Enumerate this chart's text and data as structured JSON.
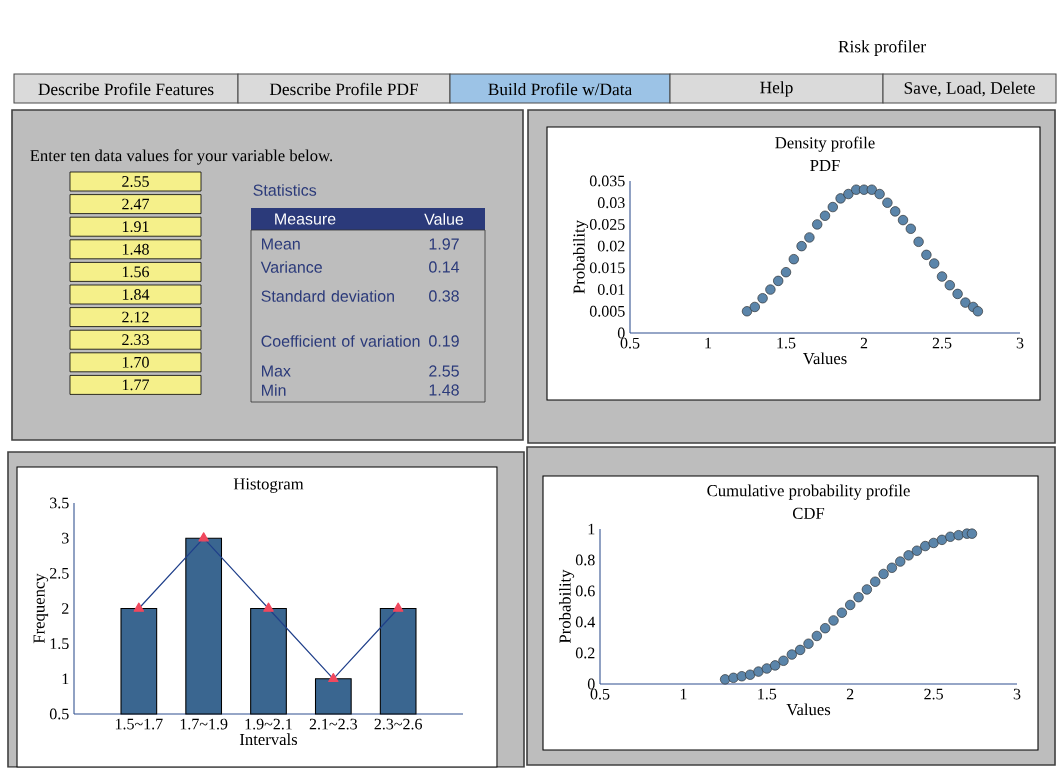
{
  "chart_data": [
    {
      "type": "other",
      "title": "Risk profiler",
      "annotations": [
        "Describe Profile Features",
        "Describe Profile PDF",
        "Build Profile w/Data",
        "Help",
        "Save, Load, Delete"
      ]
    },
    {
      "type": "other",
      "title": "Enter ten data values for your variable below.",
      "annotations": [
        "2.55",
        "2.47",
        "1.91",
        "1.48",
        "1.56",
        "1.84",
        "2.12",
        "2.33",
        "1.70",
        "1.77"
      ]
    },
    {
      "type": "other",
      "title": "Statistics",
      "xlabel": "Measure",
      "ylabel": "Value",
      "categories": [
        "Mean",
        "Variance",
        "Standard deviation",
        "Coefficient of variation",
        "Max",
        "Min"
      ],
      "values": [
        1.97,
        0.14,
        0.38,
        0.19,
        2.55,
        1.48
      ],
      "data_labels": true
    },
    {
      "type": "scatter",
      "title": "Density profile",
      "subtitle": "PDF",
      "xlabel": "Values",
      "ylabel": "Probability",
      "marker": "circle",
      "xlim": [
        0.5,
        3
      ],
      "xticks": [
        0.5,
        1,
        1.5,
        2,
        2.5,
        3
      ],
      "ylim": [
        0,
        0.035
      ],
      "yticks": [
        0,
        0.005,
        0.01,
        0.015,
        0.02,
        0.025,
        0.03,
        0.035
      ],
      "series": [
        {
          "color": "#5b85aa",
          "x": [
            1.25,
            1.3,
            1.35,
            1.4,
            1.45,
            1.5,
            1.55,
            1.6,
            1.65,
            1.7,
            1.75,
            1.8,
            1.85,
            1.9,
            1.95,
            2.0,
            2.05,
            2.1,
            2.15,
            2.2,
            2.25,
            2.3,
            2.35,
            2.4,
            2.45,
            2.5,
            2.55,
            2.6,
            2.65,
            2.7,
            2.73
          ],
          "values": [
            0.005,
            0.006,
            0.008,
            0.01,
            0.012,
            0.014,
            0.017,
            0.02,
            0.022,
            0.025,
            0.027,
            0.029,
            0.031,
            0.032,
            0.033,
            0.033,
            0.033,
            0.032,
            0.03,
            0.028,
            0.026,
            0.024,
            0.021,
            0.018,
            0.016,
            0.013,
            0.011,
            0.009,
            0.007,
            0.006,
            0.005
          ]
        }
      ]
    },
    {
      "type": "bar",
      "title": "Histogram",
      "xlabel": "Intervals",
      "ylabel": "Frequency",
      "categories": [
        "1.5~1.7",
        "1.7~1.9",
        "1.9~2.1",
        "2.1~2.3",
        "2.3~2.6"
      ],
      "ylim": [
        0.5,
        3.5
      ],
      "yticks": [
        0.5,
        1,
        1.5,
        2,
        2.5,
        3,
        3.5
      ],
      "series": [
        {
          "color": "#3a6690",
          "values": [
            2,
            3,
            2,
            1,
            2
          ]
        },
        {
          "type": "line",
          "color": "#1f3f8a",
          "marker": "triangle",
          "values": [
            2,
            3,
            2,
            1,
            2
          ]
        }
      ]
    },
    {
      "type": "scatter",
      "title": "Cumulative probability profile",
      "subtitle": "CDF",
      "xlabel": "Values",
      "ylabel": "Probability",
      "marker": "circle",
      "xlim": [
        0.5,
        3
      ],
      "xticks": [
        0.5,
        1,
        1.5,
        2,
        2.5,
        3
      ],
      "ylim": [
        0,
        1
      ],
      "yticks": [
        0,
        0.2,
        0.4,
        0.6,
        0.8,
        1
      ],
      "series": [
        {
          "color": "#5b85aa",
          "x": [
            1.25,
            1.3,
            1.35,
            1.4,
            1.45,
            1.5,
            1.55,
            1.6,
            1.65,
            1.7,
            1.75,
            1.8,
            1.85,
            1.9,
            1.95,
            2.0,
            2.05,
            2.1,
            2.15,
            2.2,
            2.25,
            2.3,
            2.35,
            2.4,
            2.45,
            2.5,
            2.55,
            2.6,
            2.65,
            2.7,
            2.73
          ],
          "values": [
            0.03,
            0.04,
            0.05,
            0.06,
            0.08,
            0.1,
            0.12,
            0.15,
            0.19,
            0.22,
            0.26,
            0.31,
            0.36,
            0.41,
            0.46,
            0.51,
            0.56,
            0.61,
            0.66,
            0.71,
            0.75,
            0.79,
            0.83,
            0.86,
            0.89,
            0.91,
            0.93,
            0.95,
            0.96,
            0.97,
            0.97
          ]
        }
      ]
    }
  ]
}
